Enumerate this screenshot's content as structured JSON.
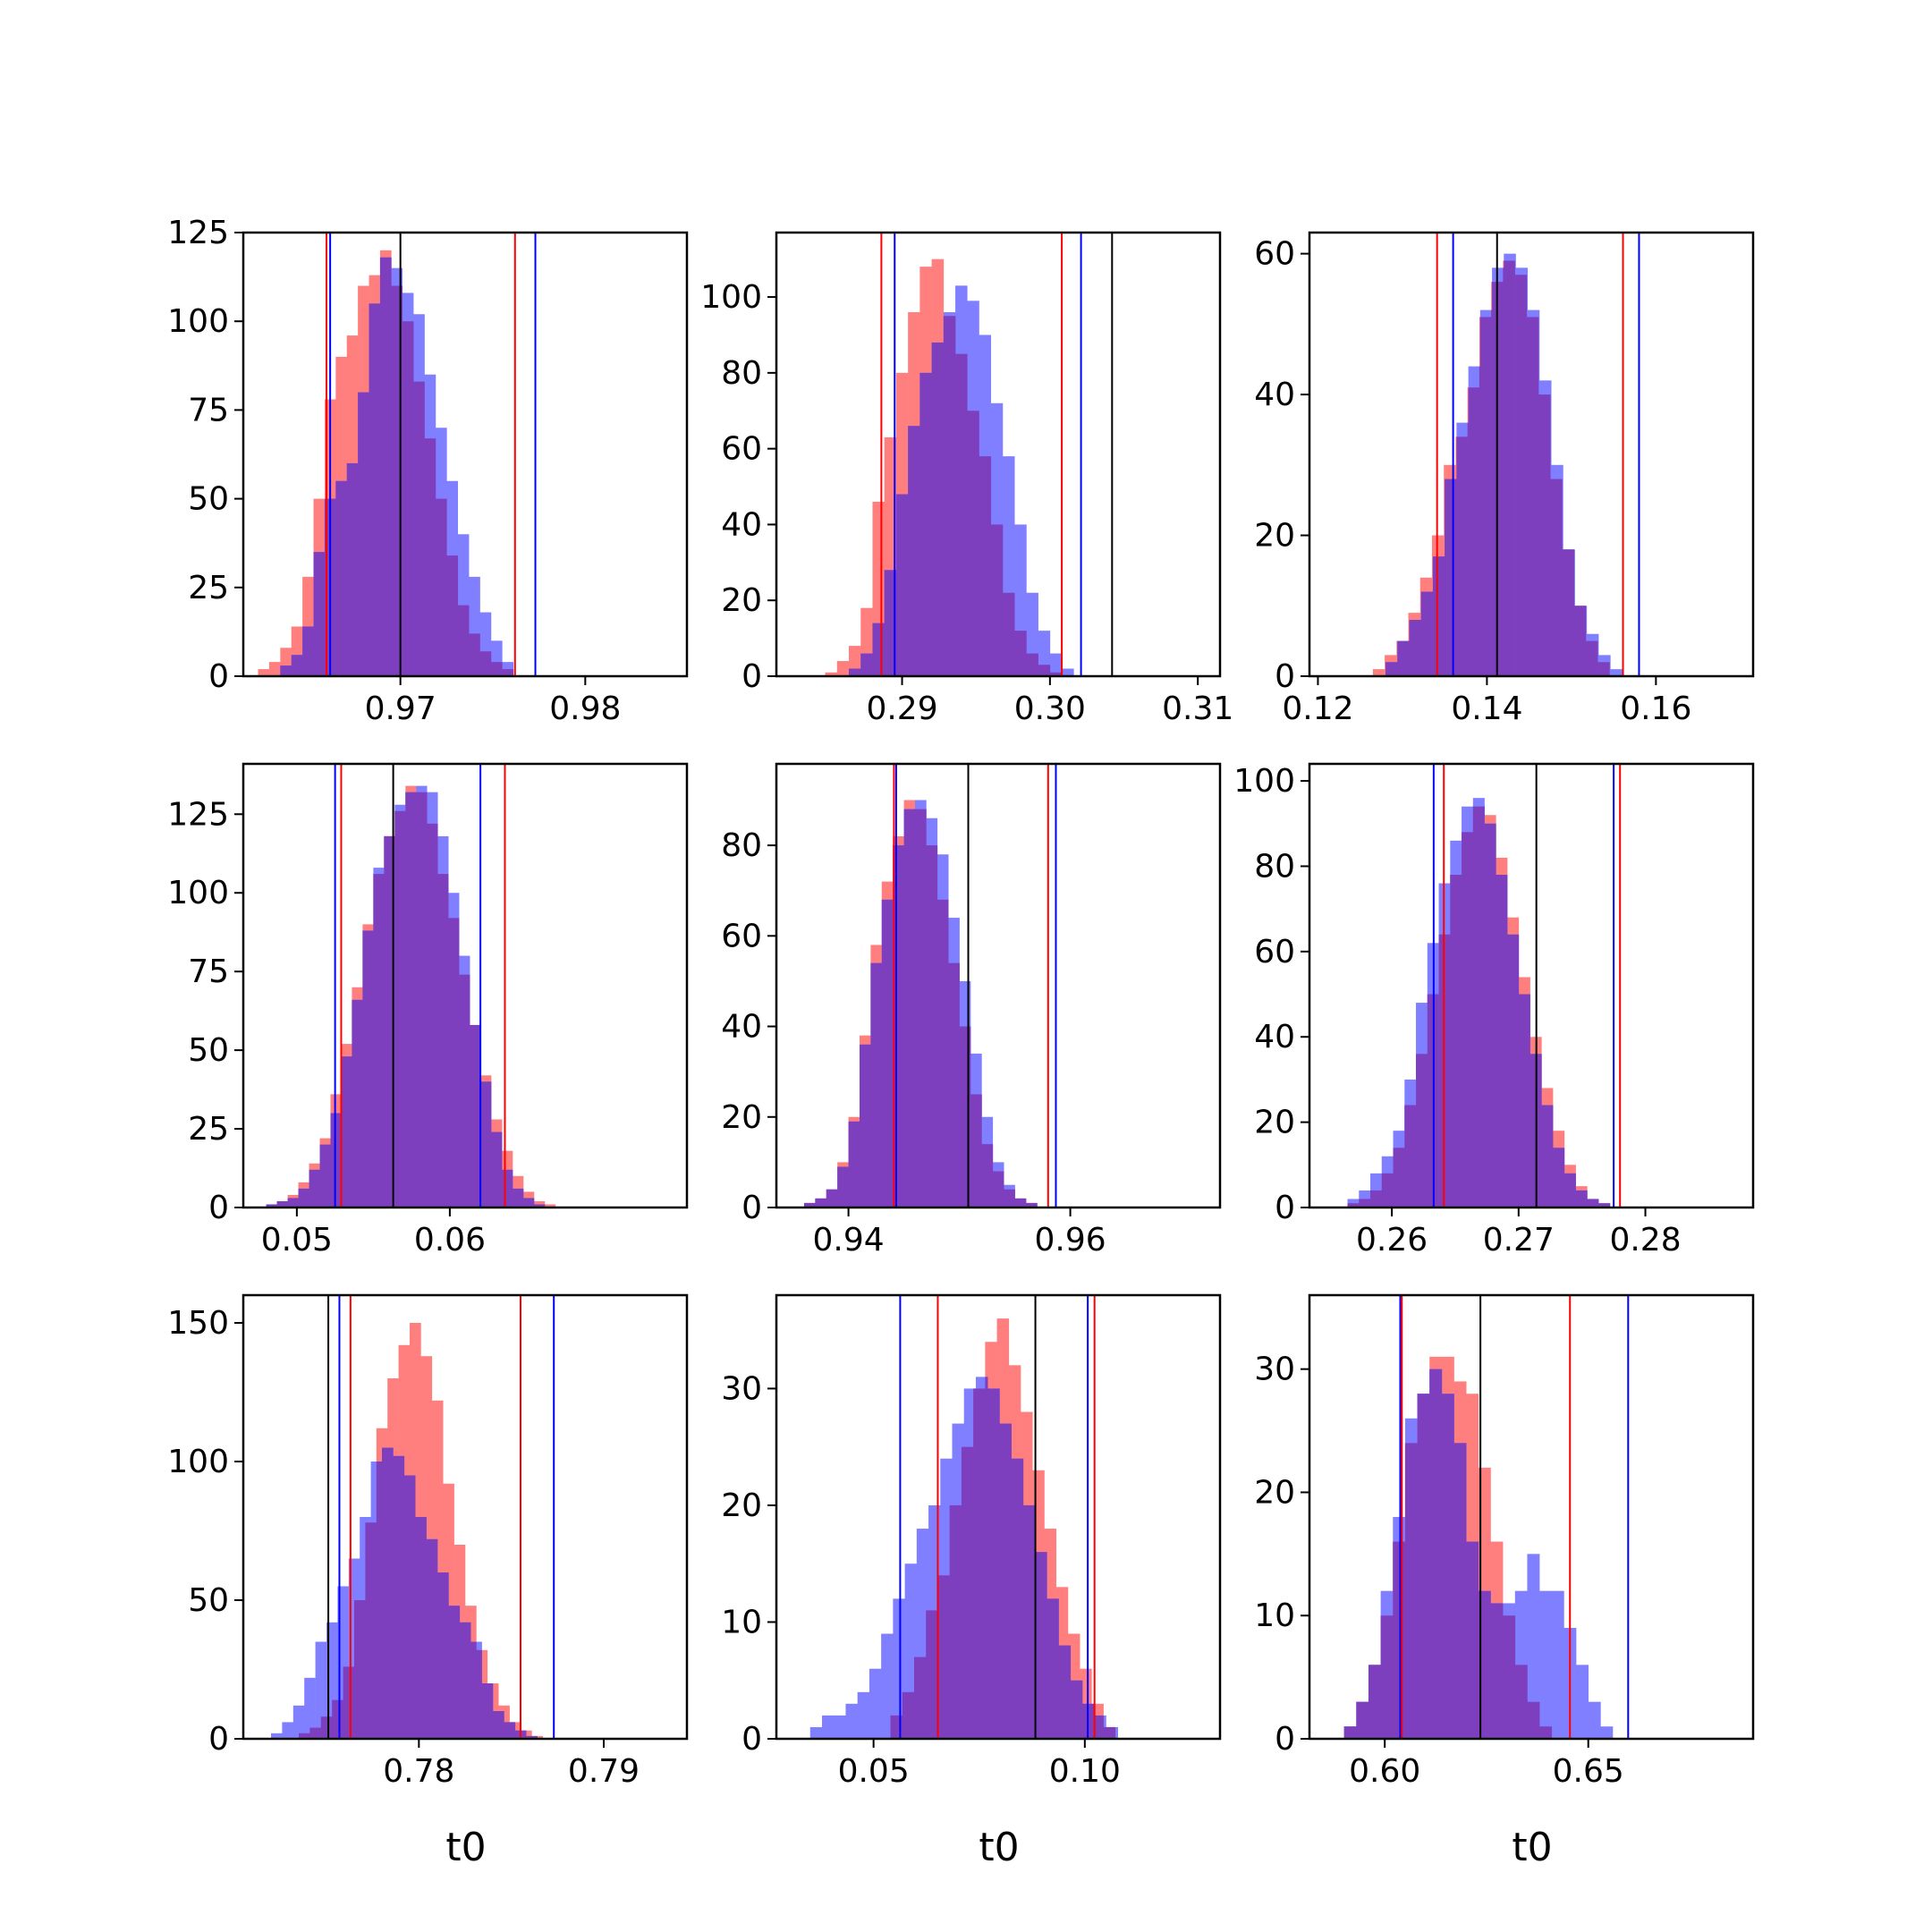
{
  "colors": {
    "red": "#ff0000",
    "blue": "#0000ff",
    "black": "#000000",
    "red_fill": "#ff7f7f",
    "blue_fill": "#7f7fff",
    "overlap_fill": "#7e3fbf"
  },
  "xlabels": [
    "t0",
    "t0",
    "t0"
  ],
  "chart_data": [
    {
      "type": "histogram",
      "xlim": [
        0.9615,
        0.9855
      ],
      "ylim": [
        0,
        125
      ],
      "xticks": [
        {
          "v": 0.97,
          "label": "0.97"
        },
        {
          "v": 0.98,
          "label": "0.98"
        }
      ],
      "yticks": [
        {
          "v": 0,
          "label": "0"
        },
        {
          "v": 25,
          "label": "25"
        },
        {
          "v": 50,
          "label": "50"
        },
        {
          "v": 75,
          "label": "75"
        },
        {
          "v": 100,
          "label": "100"
        },
        {
          "v": 125,
          "label": "125"
        }
      ],
      "series": [
        {
          "color": "red",
          "bin_start": 0.9623,
          "bin_width": 0.0006,
          "counts": [
            2,
            4,
            8,
            14,
            28,
            50,
            78,
            90,
            96,
            110,
            113,
            120,
            110,
            100,
            83,
            67,
            50,
            34,
            20,
            12,
            7,
            4,
            2
          ]
        },
        {
          "color": "blue",
          "bin_start": 0.9635,
          "bin_width": 0.0006,
          "counts": [
            3,
            6,
            14,
            35,
            50,
            55,
            60,
            80,
            105,
            118,
            115,
            108,
            102,
            85,
            70,
            55,
            40,
            28,
            18,
            10,
            4
          ]
        }
      ],
      "vlines": [
        {
          "color": "red",
          "x": 0.966
        },
        {
          "color": "blue",
          "x": 0.9662
        },
        {
          "color": "black",
          "x": 0.97
        },
        {
          "color": "red",
          "x": 0.9762
        },
        {
          "color": "blue",
          "x": 0.9773
        }
      ]
    },
    {
      "type": "histogram",
      "xlim": [
        0.2815,
        0.3115
      ],
      "ylim": [
        0,
        117
      ],
      "xticks": [
        {
          "v": 0.29,
          "label": "0.29"
        },
        {
          "v": 0.3,
          "label": "0.30"
        },
        {
          "v": 0.31,
          "label": "0.31"
        }
      ],
      "yticks": [
        {
          "v": 0,
          "label": "0"
        },
        {
          "v": 20,
          "label": "20"
        },
        {
          "v": 40,
          "label": "40"
        },
        {
          "v": 60,
          "label": "60"
        },
        {
          "v": 80,
          "label": "80"
        },
        {
          "v": 100,
          "label": "100"
        }
      ],
      "series": [
        {
          "color": "red",
          "bin_start": 0.2848,
          "bin_width": 0.0008,
          "counts": [
            1,
            4,
            8,
            18,
            46,
            63,
            80,
            96,
            108,
            110,
            95,
            85,
            70,
            58,
            40,
            22,
            12,
            6,
            3,
            1
          ]
        },
        {
          "color": "blue",
          "bin_start": 0.2864,
          "bin_width": 0.0008,
          "counts": [
            2,
            6,
            14,
            28,
            48,
            66,
            80,
            88,
            96,
            103,
            99,
            90,
            72,
            58,
            40,
            22,
            12,
            6,
            2
          ]
        }
      ],
      "vlines": [
        {
          "color": "red",
          "x": 0.2886
        },
        {
          "color": "blue",
          "x": 0.2895
        },
        {
          "color": "red",
          "x": 0.3008
        },
        {
          "color": "blue",
          "x": 0.3021
        },
        {
          "color": "black",
          "x": 0.3042
        }
      ]
    },
    {
      "type": "histogram",
      "xlim": [
        0.119,
        0.1715
      ],
      "ylim": [
        0,
        63
      ],
      "xticks": [
        {
          "v": 0.12,
          "label": "0.12"
        },
        {
          "v": 0.14,
          "label": "0.14"
        },
        {
          "v": 0.16,
          "label": "0.16"
        }
      ],
      "yticks": [
        {
          "v": 0,
          "label": "0"
        },
        {
          "v": 20,
          "label": "20"
        },
        {
          "v": 40,
          "label": "40"
        },
        {
          "v": 60,
          "label": "60"
        }
      ],
      "series": [
        {
          "color": "red",
          "bin_start": 0.1265,
          "bin_width": 0.0014,
          "counts": [
            1,
            3,
            5,
            9,
            14,
            20,
            30,
            34,
            41,
            51,
            56,
            59,
            57,
            51,
            40,
            28,
            18,
            10,
            5,
            2
          ]
        },
        {
          "color": "blue",
          "bin_start": 0.128,
          "bin_width": 0.0014,
          "counts": [
            2,
            5,
            8,
            12,
            17,
            28,
            36,
            44,
            52,
            58,
            60,
            58,
            52,
            42,
            30,
            18,
            10,
            6,
            3,
            1
          ]
        }
      ],
      "vlines": [
        {
          "color": "red",
          "x": 0.1341
        },
        {
          "color": "blue",
          "x": 0.136
        },
        {
          "color": "black",
          "x": 0.1412
        },
        {
          "color": "red",
          "x": 0.1561
        },
        {
          "color": "blue",
          "x": 0.158
        }
      ]
    },
    {
      "type": "histogram",
      "xlim": [
        0.0465,
        0.0755
      ],
      "ylim": [
        0,
        141
      ],
      "xticks": [
        {
          "v": 0.05,
          "label": "0.05"
        },
        {
          "v": 0.06,
          "label": "0.06"
        }
      ],
      "yticks": [
        {
          "v": 0,
          "label": "0"
        },
        {
          "v": 25,
          "label": "25"
        },
        {
          "v": 50,
          "label": "50"
        },
        {
          "v": 75,
          "label": "75"
        },
        {
          "v": 100,
          "label": "100"
        },
        {
          "v": 125,
          "label": "125"
        }
      ],
      "series": [
        {
          "color": "red",
          "bin_start": 0.048,
          "bin_width": 0.0007,
          "counts": [
            1,
            2,
            4,
            8,
            14,
            22,
            36,
            52,
            70,
            90,
            106,
            118,
            126,
            134,
            132,
            122,
            106,
            92,
            74,
            58,
            42,
            28,
            18,
            10,
            5,
            2,
            1
          ]
        },
        {
          "color": "blue",
          "bin_start": 0.048,
          "bin_width": 0.0007,
          "counts": [
            1,
            2,
            3,
            6,
            12,
            20,
            30,
            48,
            66,
            88,
            108,
            118,
            128,
            132,
            134,
            132,
            118,
            100,
            80,
            58,
            40,
            24,
            12,
            6,
            3,
            1
          ]
        }
      ],
      "vlines": [
        {
          "color": "blue",
          "x": 0.0525
        },
        {
          "color": "red",
          "x": 0.0529
        },
        {
          "color": "black",
          "x": 0.0563
        },
        {
          "color": "blue",
          "x": 0.062
        },
        {
          "color": "red",
          "x": 0.0636
        }
      ]
    },
    {
      "type": "histogram",
      "xlim": [
        0.9335,
        0.9735
      ],
      "ylim": [
        0,
        98
      ],
      "xticks": [
        {
          "v": 0.94,
          "label": "0.94"
        },
        {
          "v": 0.96,
          "label": "0.96"
        }
      ],
      "yticks": [
        {
          "v": 0,
          "label": "0"
        },
        {
          "v": 20,
          "label": "20"
        },
        {
          "v": 40,
          "label": "40"
        },
        {
          "v": 60,
          "label": "60"
        },
        {
          "v": 80,
          "label": "80"
        }
      ],
      "series": [
        {
          "color": "red",
          "bin_start": 0.936,
          "bin_width": 0.001,
          "counts": [
            1,
            2,
            4,
            10,
            20,
            38,
            58,
            72,
            82,
            90,
            88,
            80,
            68,
            54,
            40,
            25,
            14,
            8,
            4,
            2,
            1
          ]
        },
        {
          "color": "blue",
          "bin_start": 0.936,
          "bin_width": 0.001,
          "counts": [
            1,
            2,
            4,
            9,
            19,
            36,
            54,
            68,
            80,
            88,
            90,
            86,
            78,
            64,
            50,
            34,
            20,
            10,
            5,
            2,
            1
          ]
        }
      ],
      "vlines": [
        {
          "color": "red",
          "x": 0.9441
        },
        {
          "color": "blue",
          "x": 0.9443
        },
        {
          "color": "black",
          "x": 0.9508
        },
        {
          "color": "red",
          "x": 0.958
        },
        {
          "color": "blue",
          "x": 0.9587
        }
      ]
    },
    {
      "type": "histogram",
      "xlim": [
        0.2535,
        0.2885
      ],
      "ylim": [
        0,
        104
      ],
      "xticks": [
        {
          "v": 0.26,
          "label": "0.26"
        },
        {
          "v": 0.27,
          "label": "0.27"
        },
        {
          "v": 0.28,
          "label": "0.28"
        }
      ],
      "yticks": [
        {
          "v": 0,
          "label": "0"
        },
        {
          "v": 20,
          "label": "20"
        },
        {
          "v": 40,
          "label": "40"
        },
        {
          "v": 60,
          "label": "60"
        },
        {
          "v": 80,
          "label": "80"
        },
        {
          "v": 100,
          "label": "100"
        }
      ],
      "series": [
        {
          "color": "red",
          "bin_start": 0.2565,
          "bin_width": 0.0009,
          "counts": [
            1,
            2,
            4,
            8,
            14,
            24,
            36,
            50,
            64,
            78,
            88,
            94,
            92,
            82,
            68,
            54,
            40,
            28,
            18,
            10,
            5,
            2,
            1
          ]
        },
        {
          "color": "blue",
          "bin_start": 0.2565,
          "bin_width": 0.0009,
          "counts": [
            2,
            4,
            8,
            12,
            18,
            30,
            48,
            62,
            76,
            86,
            94,
            96,
            90,
            78,
            64,
            50,
            36,
            24,
            14,
            8,
            4,
            2,
            1
          ]
        }
      ],
      "vlines": [
        {
          "color": "blue",
          "x": 0.2633
        },
        {
          "color": "red",
          "x": 0.2641
        },
        {
          "color": "black",
          "x": 0.2714
        },
        {
          "color": "blue",
          "x": 0.2775
        },
        {
          "color": "red",
          "x": 0.278
        }
      ]
    },
    {
      "type": "histogram",
      "xlim": [
        0.7705,
        0.7945
      ],
      "ylim": [
        0,
        160
      ],
      "xticks": [
        {
          "v": 0.78,
          "label": "0.78"
        },
        {
          "v": 0.79,
          "label": "0.79"
        }
      ],
      "yticks": [
        {
          "v": 0,
          "label": "0"
        },
        {
          "v": 50,
          "label": "50"
        },
        {
          "v": 100,
          "label": "100"
        },
        {
          "v": 150,
          "label": "150"
        }
      ],
      "series": [
        {
          "color": "red",
          "bin_start": 0.7735,
          "bin_width": 0.0006,
          "counts": [
            2,
            4,
            8,
            14,
            26,
            50,
            78,
            112,
            130,
            142,
            150,
            138,
            122,
            92,
            70,
            48,
            32,
            20,
            12,
            6,
            3,
            1
          ]
        },
        {
          "color": "blue",
          "bin_start": 0.772,
          "bin_width": 0.0006,
          "counts": [
            2,
            6,
            12,
            22,
            35,
            42,
            55,
            65,
            80,
            100,
            105,
            102,
            95,
            80,
            72,
            60,
            48,
            42,
            35,
            20,
            10,
            6,
            3,
            1
          ]
        }
      ],
      "vlines": [
        {
          "color": "black",
          "x": 0.7751
        },
        {
          "color": "blue",
          "x": 0.7757
        },
        {
          "color": "red",
          "x": 0.7763
        },
        {
          "color": "red",
          "x": 0.7855
        },
        {
          "color": "blue",
          "x": 0.7873
        }
      ]
    },
    {
      "type": "histogram",
      "xlim": [
        0.027,
        0.132
      ],
      "ylim": [
        0,
        38
      ],
      "xticks": [
        {
          "v": 0.05,
          "label": "0.05"
        },
        {
          "v": 0.1,
          "label": "0.10"
        }
      ],
      "yticks": [
        {
          "v": 0,
          "label": "0"
        },
        {
          "v": 10,
          "label": "10"
        },
        {
          "v": 20,
          "label": "20"
        },
        {
          "v": 30,
          "label": "30"
        }
      ],
      "series": [
        {
          "color": "red",
          "bin_start": 0.054,
          "bin_width": 0.0028,
          "counts": [
            2,
            4,
            7,
            11,
            14,
            20,
            25,
            30,
            34,
            36,
            32,
            28,
            23,
            18,
            13,
            9,
            6,
            3,
            1
          ]
        },
        {
          "color": "blue",
          "bin_start": 0.035,
          "bin_width": 0.0028,
          "counts": [
            1,
            2,
            2,
            3,
            4,
            6,
            9,
            12,
            15,
            18,
            20,
            24,
            27,
            30,
            31,
            30,
            27,
            24,
            20,
            16,
            12,
            8,
            5,
            3,
            2,
            1
          ]
        }
      ],
      "vlines": [
        {
          "color": "blue",
          "x": 0.0563
        },
        {
          "color": "red",
          "x": 0.0652
        },
        {
          "color": "black",
          "x": 0.0883
        },
        {
          "color": "blue",
          "x": 0.1007
        },
        {
          "color": "red",
          "x": 0.1023
        }
      ]
    },
    {
      "type": "histogram",
      "xlim": [
        0.5815,
        0.6905
      ],
      "ylim": [
        0,
        36
      ],
      "xticks": [
        {
          "v": 0.6,
          "label": "0.60"
        },
        {
          "v": 0.65,
          "label": "0.65"
        }
      ],
      "yticks": [
        {
          "v": 0,
          "label": "0"
        },
        {
          "v": 10,
          "label": "10"
        },
        {
          "v": 20,
          "label": "20"
        },
        {
          "v": 30,
          "label": "30"
        }
      ],
      "series": [
        {
          "color": "red",
          "bin_start": 0.59,
          "bin_width": 0.003,
          "counts": [
            1,
            3,
            6,
            10,
            16,
            24,
            28,
            31,
            31,
            29,
            28,
            22,
            16,
            10,
            6,
            3,
            1
          ]
        },
        {
          "color": "blue",
          "bin_start": 0.59,
          "bin_width": 0.003,
          "counts": [
            1,
            3,
            6,
            12,
            18,
            26,
            28,
            30,
            28,
            24,
            16,
            12,
            11,
            11,
            12,
            15,
            12,
            12,
            9,
            6,
            3,
            1
          ]
        }
      ],
      "vlines": [
        {
          "color": "blue",
          "x": 0.6038
        },
        {
          "color": "red",
          "x": 0.6042
        },
        {
          "color": "black",
          "x": 0.6235
        },
        {
          "color": "red",
          "x": 0.6455
        },
        {
          "color": "blue",
          "x": 0.6598
        }
      ]
    }
  ]
}
